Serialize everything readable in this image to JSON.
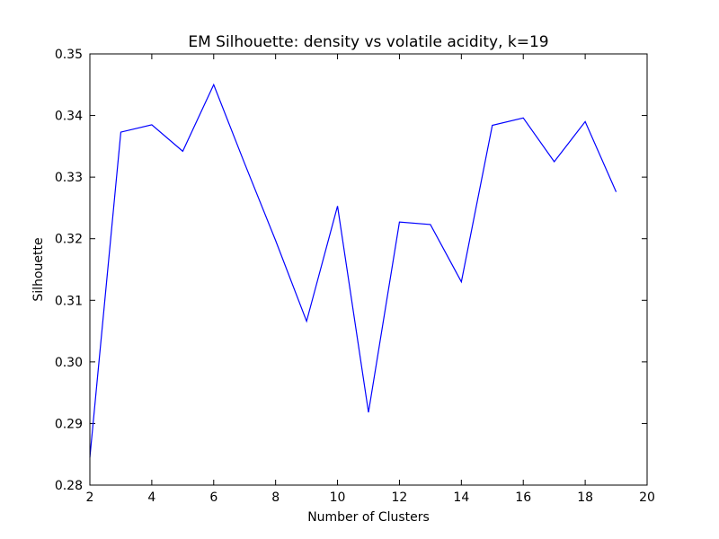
{
  "chart_data": {
    "type": "line",
    "title": "EM Silhouette: density vs volatile acidity, k=19",
    "xlabel": "Number of Clusters",
    "ylabel": "Silhouette",
    "xlim": [
      2,
      20
    ],
    "ylim": [
      0.28,
      0.35
    ],
    "xticks": [
      2,
      4,
      6,
      8,
      10,
      12,
      14,
      16,
      18,
      20
    ],
    "xtick_labels": [
      "2",
      "4",
      "6",
      "8",
      "10",
      "12",
      "14",
      "16",
      "18",
      "20"
    ],
    "yticks": [
      0.28,
      0.29,
      0.3,
      0.31,
      0.32,
      0.33,
      0.34,
      0.35
    ],
    "ytick_labels": [
      "0.28",
      "0.29",
      "0.30",
      "0.31",
      "0.32",
      "0.33",
      "0.34",
      "0.35"
    ],
    "grid": false,
    "series": [
      {
        "color": "#0000ff",
        "x": [
          2,
          3,
          4,
          5,
          6,
          7,
          8,
          9,
          10,
          11,
          12,
          13,
          14,
          15,
          16,
          17,
          18,
          19
        ],
        "y": [
          0.2845,
          0.3373,
          0.3385,
          0.3342,
          0.345,
          0.3322,
          0.3197,
          0.3066,
          0.3253,
          0.2918,
          0.3227,
          0.3223,
          0.313,
          0.3384,
          0.3396,
          0.3325,
          0.339,
          0.3276
        ]
      }
    ]
  }
}
